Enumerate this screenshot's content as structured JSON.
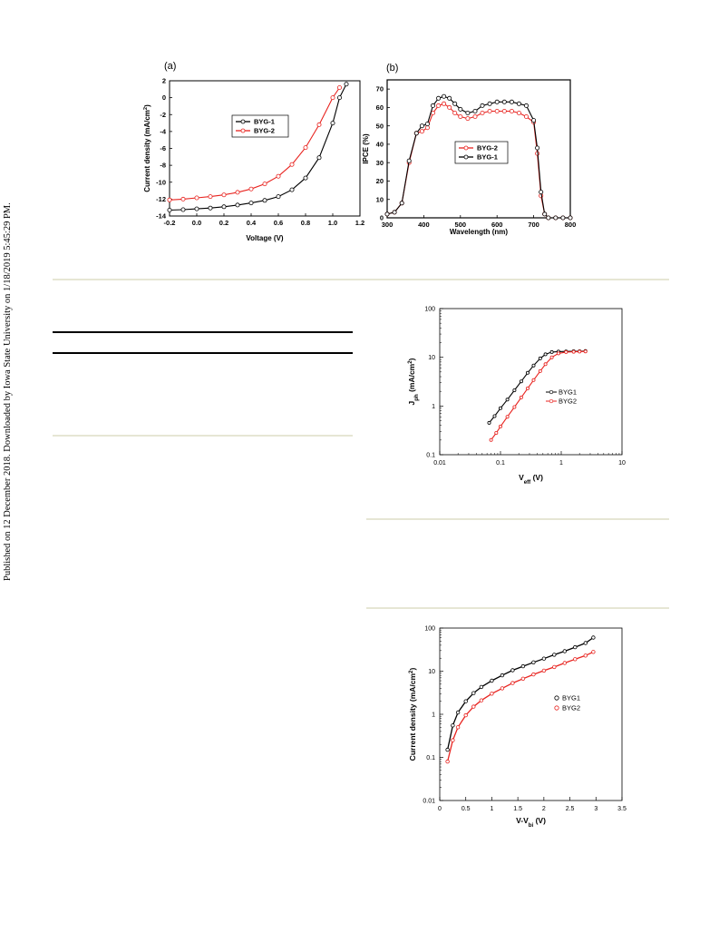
{
  "sidebar_text": "Published on 12 December 2018. Downloaded by Iowa State University on 1/18/2019 5:45:29 PM.",
  "colors": {
    "byg1": "#000000",
    "byg2": "#e8231f",
    "rule": "#e6e6d4",
    "marker_fill": "#ffffff"
  },
  "chart_data": [
    {
      "panel": "(a)",
      "type": "line",
      "xlabel": "Voltage (V)",
      "ylabel": "Current density (mA/cm2)",
      "xlim": [
        -0.2,
        1.2
      ],
      "ylim": [
        -14,
        2
      ],
      "xticks": [
        -0.2,
        0.0,
        0.2,
        0.4,
        0.6,
        0.8,
        1.0,
        1.2
      ],
      "xtick_labels": [
        "-0.2",
        "0.0",
        "0.2",
        "0.4",
        "0.6",
        "0.8",
        "1.0",
        "1.2"
      ],
      "yticks": [
        2,
        0,
        -2,
        -4,
        -6,
        -8,
        -10,
        -12,
        -14
      ],
      "ytick_labels": [
        "2",
        "0",
        "-2",
        "-4",
        "-6",
        "-8",
        "-10",
        "-12",
        "-14"
      ],
      "legend": "center-right",
      "series": [
        {
          "name": "BYG-1",
          "color": "#000000",
          "x": [
            -0.2,
            -0.1,
            0.0,
            0.1,
            0.2,
            0.3,
            0.4,
            0.5,
            0.6,
            0.7,
            0.8,
            0.9,
            1.0,
            1.05,
            1.1
          ],
          "y": [
            -13.3,
            -13.25,
            -13.15,
            -13.05,
            -12.9,
            -12.7,
            -12.45,
            -12.15,
            -11.7,
            -10.9,
            -9.5,
            -7.1,
            -3.0,
            0.0,
            1.6
          ]
        },
        {
          "name": "BYG-2",
          "color": "#e8231f",
          "x": [
            -0.2,
            -0.1,
            0.0,
            0.1,
            0.2,
            0.3,
            0.4,
            0.5,
            0.6,
            0.7,
            0.8,
            0.9,
            1.0,
            1.05
          ],
          "y": [
            -12.1,
            -12.0,
            -11.85,
            -11.7,
            -11.5,
            -11.2,
            -10.8,
            -10.2,
            -9.3,
            -7.9,
            -5.9,
            -3.2,
            0.0,
            1.2
          ]
        }
      ]
    },
    {
      "panel": "(b)",
      "type": "line",
      "xlabel": "Wavelength (nm)",
      "ylabel": "IPCE (%)",
      "xlim": [
        300,
        800
      ],
      "ylim": [
        0,
        75
      ],
      "xticks": [
        300,
        400,
        500,
        600,
        700,
        800
      ],
      "xtick_labels": [
        "300",
        "400",
        "500",
        "600",
        "700",
        "800"
      ],
      "yticks": [
        0,
        10,
        20,
        30,
        40,
        50,
        60,
        70
      ],
      "ytick_labels": [
        "0",
        "10",
        "20",
        "30",
        "40",
        "50",
        "60",
        "70"
      ],
      "legend": "center",
      "series": [
        {
          "name": "BYG-2",
          "color": "#e8231f",
          "x": [
            300,
            320,
            340,
            360,
            380,
            395,
            410,
            425,
            440,
            455,
            470,
            485,
            500,
            520,
            540,
            560,
            580,
            600,
            620,
            640,
            660,
            680,
            700,
            710,
            720,
            730,
            740,
            760,
            780,
            800
          ],
          "y": [
            2,
            3,
            8,
            30,
            46,
            47,
            49,
            57,
            61,
            62,
            60,
            57,
            55,
            54,
            55,
            57,
            58,
            58,
            58,
            58,
            57,
            55,
            52,
            35,
            12,
            2,
            0,
            0,
            0,
            0
          ]
        },
        {
          "name": "BYG-1",
          "color": "#000000",
          "x": [
            300,
            320,
            340,
            360,
            380,
            395,
            410,
            425,
            440,
            455,
            470,
            485,
            500,
            520,
            540,
            560,
            580,
            600,
            620,
            640,
            660,
            680,
            700,
            710,
            720,
            730,
            740,
            760,
            780,
            800
          ],
          "y": [
            2,
            3,
            8,
            31,
            46,
            50,
            51,
            61,
            65,
            66,
            65,
            62,
            59,
            57,
            58,
            61,
            62,
            63,
            63,
            63,
            62,
            61,
            53,
            38,
            14,
            2,
            0,
            0,
            0,
            0
          ]
        }
      ]
    },
    {
      "type": "line",
      "xlabel": "Veff (V)",
      "ylabel": "Jph (mA/cm2)",
      "x_scale": "log",
      "y_scale": "log",
      "xlim": [
        0.01,
        10
      ],
      "ylim": [
        0.1,
        100
      ],
      "xtick_labels": [
        "0.01",
        "0.1",
        "1",
        "10"
      ],
      "ytick_labels": [
        "0.1",
        "1",
        "10",
        "100"
      ],
      "legend": "center-right",
      "series": [
        {
          "name": "BYG1",
          "color": "#000000",
          "x": [
            0.065,
            0.08,
            0.1,
            0.13,
            0.17,
            0.22,
            0.28,
            0.35,
            0.45,
            0.55,
            0.7,
            0.9,
            1.2,
            1.6,
            2.0,
            2.5
          ],
          "y": [
            0.45,
            0.62,
            0.9,
            1.35,
            2.1,
            3.2,
            4.8,
            6.8,
            9.5,
            11.5,
            12.8,
            13.1,
            13.2,
            13.3,
            13.3,
            13.4
          ]
        },
        {
          "name": "BYG2",
          "color": "#e8231f",
          "x": [
            0.07,
            0.085,
            0.1,
            0.13,
            0.17,
            0.22,
            0.28,
            0.35,
            0.45,
            0.55,
            0.7,
            0.9,
            1.2,
            1.6,
            2.0,
            2.5
          ],
          "y": [
            0.2,
            0.28,
            0.38,
            0.6,
            0.95,
            1.5,
            2.3,
            3.4,
            5.2,
            7.2,
            10.0,
            12.0,
            12.8,
            13.0,
            13.1,
            13.2
          ]
        }
      ]
    },
    {
      "type": "line",
      "xlabel": "V-Vbi (V)",
      "ylabel": "Current density (mA/cm2)",
      "y_scale": "log",
      "xlim": [
        0,
        3.5
      ],
      "ylim": [
        0.01,
        100
      ],
      "xticks": [
        0,
        0.5,
        1,
        1.5,
        2,
        2.5,
        3,
        3.5
      ],
      "xtick_labels": [
        "0",
        "0.5",
        "1",
        "1.5",
        "2",
        "2.5",
        "3",
        "3.5"
      ],
      "ytick_labels": [
        "0.01",
        "0.1",
        "1",
        "10",
        "100"
      ],
      "legend": "center-right",
      "series": [
        {
          "name": "BYG1",
          "color": "#000000",
          "x": [
            0.15,
            0.25,
            0.35,
            0.5,
            0.65,
            0.8,
            1.0,
            1.2,
            1.4,
            1.6,
            1.8,
            2.0,
            2.2,
            2.4,
            2.6,
            2.8,
            2.95
          ],
          "y": [
            0.15,
            0.55,
            1.1,
            2.0,
            3.1,
            4.3,
            6.0,
            8.0,
            10.5,
            13.0,
            16.0,
            19.5,
            24.0,
            29.0,
            36.0,
            45.0,
            60.0
          ]
        },
        {
          "name": "BYG2",
          "color": "#e8231f",
          "x": [
            0.15,
            0.25,
            0.35,
            0.5,
            0.65,
            0.8,
            1.0,
            1.2,
            1.4,
            1.6,
            1.8,
            2.0,
            2.2,
            2.4,
            2.6,
            2.8,
            2.95
          ],
          "y": [
            0.08,
            0.25,
            0.5,
            0.95,
            1.5,
            2.1,
            3.0,
            4.0,
            5.3,
            6.7,
            8.4,
            10.3,
            12.5,
            15.5,
            19.0,
            23.0,
            28.0
          ]
        }
      ]
    }
  ]
}
